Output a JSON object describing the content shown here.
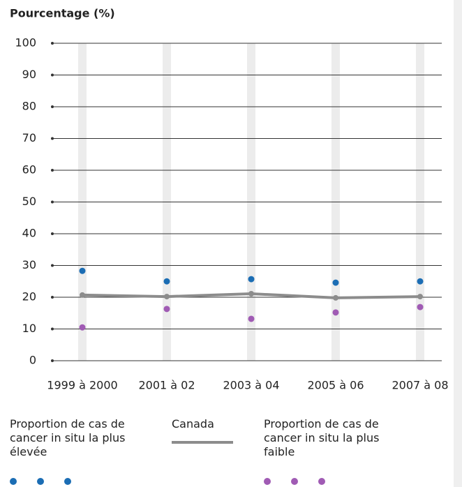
{
  "chart_data": {
    "type": "line",
    "y_label": "Pourcentage (%)",
    "categories": [
      "1999 à 2000",
      "2001 à 02",
      "2003 à 04",
      "2005 à 06",
      "2007 à 08"
    ],
    "series": [
      {
        "name": "Proportion de cas de cancer in situ la plus élevée",
        "color": "#1b6db4",
        "style": "points",
        "values": [
          28.3,
          25,
          25.7,
          24.6,
          25
        ]
      },
      {
        "name": "Canada",
        "color": "#8c8c8c",
        "style": "line",
        "values": [
          20.7,
          20.2,
          21.1,
          19.8,
          20.2
        ]
      },
      {
        "name": "Proportion de cas de cancer in situ la plus faible",
        "color": "#a05bb4",
        "style": "points",
        "values": [
          10.5,
          16.3,
          13.2,
          15.2,
          16.9
        ]
      }
    ],
    "ylim": [
      0,
      100
    ],
    "yticks": [
      0,
      10,
      20,
      30,
      40,
      50,
      60,
      70,
      80,
      90,
      100
    ],
    "grid": true
  }
}
